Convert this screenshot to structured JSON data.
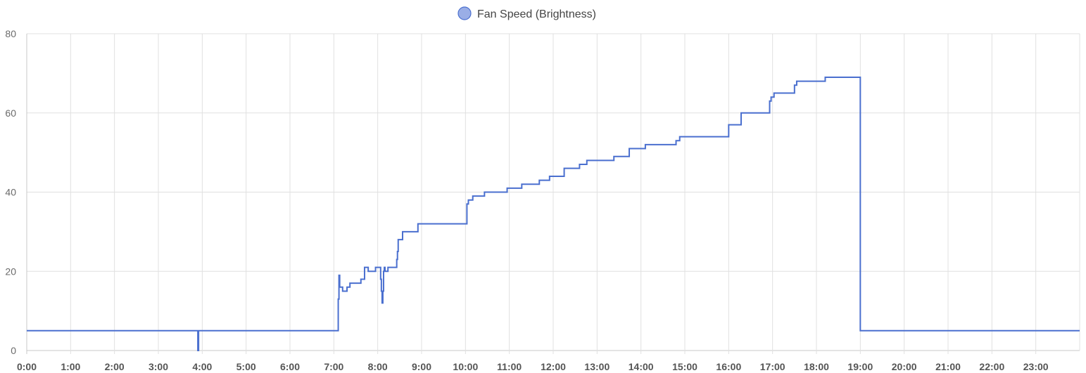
{
  "chart_data": {
    "type": "line",
    "step": true,
    "legend_position": "top-center",
    "grid": true,
    "ylim": [
      0,
      80
    ],
    "y_ticks": [
      0,
      20,
      40,
      60,
      80
    ],
    "x_ticks": [
      "0:00",
      "1:00",
      "2:00",
      "3:00",
      "4:00",
      "5:00",
      "6:00",
      "7:00",
      "8:00",
      "9:00",
      "10:00",
      "11:00",
      "12:00",
      "13:00",
      "14:00",
      "15:00",
      "16:00",
      "17:00",
      "18:00",
      "19:00",
      "20:00",
      "21:00",
      "22:00",
      "23:00"
    ],
    "xlim_hours": [
      0,
      24
    ],
    "series": [
      {
        "name": "Fan Speed (Brightness)",
        "color": "#4a6fcf",
        "legend_fill": "#9aaee6",
        "points": [
          [
            "0:00",
            5
          ],
          [
            "3:54",
            5
          ],
          [
            "3:54",
            0
          ],
          [
            "3:55",
            5
          ],
          [
            "7:05",
            5
          ],
          [
            "7:06",
            13
          ],
          [
            "7:07",
            19
          ],
          [
            "7:08",
            16
          ],
          [
            "7:11",
            16
          ],
          [
            "7:12",
            15
          ],
          [
            "7:17",
            15
          ],
          [
            "7:18",
            16
          ],
          [
            "7:21",
            16
          ],
          [
            "7:22",
            17
          ],
          [
            "7:36",
            17
          ],
          [
            "7:37",
            18
          ],
          [
            "7:41",
            18
          ],
          [
            "7:42",
            21
          ],
          [
            "7:46",
            21
          ],
          [
            "7:47",
            20
          ],
          [
            "7:56",
            20
          ],
          [
            "7:57",
            21
          ],
          [
            "8:03",
            21
          ],
          [
            "8:04",
            18
          ],
          [
            "8:05",
            15
          ],
          [
            "8:06",
            12
          ],
          [
            "8:07",
            15
          ],
          [
            "8:08",
            20
          ],
          [
            "8:09",
            21
          ],
          [
            "8:10",
            20
          ],
          [
            "8:13",
            20
          ],
          [
            "8:14",
            21
          ],
          [
            "8:25",
            21
          ],
          [
            "8:26",
            23
          ],
          [
            "8:27",
            25
          ],
          [
            "8:28",
            28
          ],
          [
            "8:33",
            28
          ],
          [
            "8:34",
            30
          ],
          [
            "8:54",
            30
          ],
          [
            "8:55",
            32
          ],
          [
            "10:01",
            32
          ],
          [
            "10:02",
            37
          ],
          [
            "10:04",
            38
          ],
          [
            "10:10",
            39
          ],
          [
            "10:26",
            40
          ],
          [
            "10:57",
            41
          ],
          [
            "11:17",
            42
          ],
          [
            "11:41",
            43
          ],
          [
            "11:55",
            44
          ],
          [
            "12:15",
            46
          ],
          [
            "12:36",
            47
          ],
          [
            "12:46",
            48
          ],
          [
            "13:23",
            49
          ],
          [
            "13:44",
            51
          ],
          [
            "14:06",
            52
          ],
          [
            "14:48",
            53
          ],
          [
            "14:53",
            54
          ],
          [
            "16:00",
            57
          ],
          [
            "16:17",
            60
          ],
          [
            "16:56",
            63
          ],
          [
            "16:58",
            64
          ],
          [
            "17:02",
            65
          ],
          [
            "17:30",
            67
          ],
          [
            "17:33",
            68
          ],
          [
            "18:12",
            69
          ],
          [
            "19:00",
            69
          ],
          [
            "19:00",
            5
          ],
          [
            "24:00",
            5
          ]
        ]
      }
    ]
  }
}
